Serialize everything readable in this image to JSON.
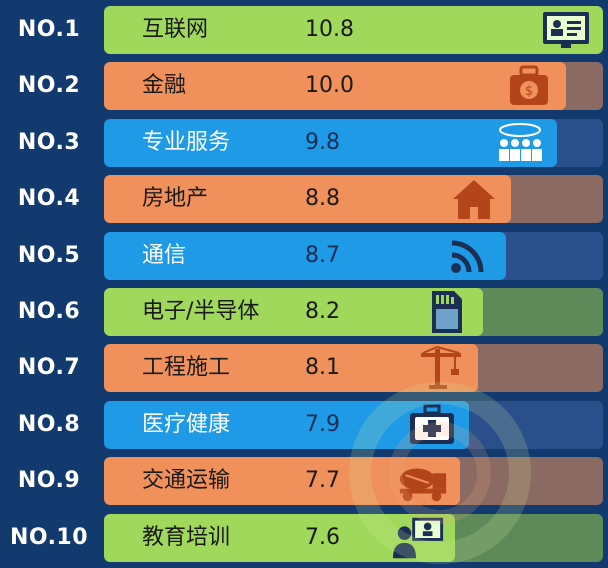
{
  "chart_data": {
    "type": "bar",
    "orientation": "horizontal",
    "categories": [
      "互联网",
      "金融",
      "专业服务",
      "房地产",
      "通信",
      "电子/半导体",
      "工程施工",
      "医疗健康",
      "交通运输",
      "教育培训"
    ],
    "ranks": [
      "NO.1",
      "NO.2",
      "NO.3",
      "NO.4",
      "NO.5",
      "NO.6",
      "NO.7",
      "NO.8",
      "NO.9",
      "NO.10"
    ],
    "values": [
      10.8,
      10.0,
      9.8,
      8.8,
      8.7,
      8.2,
      8.1,
      7.9,
      7.7,
      7.6
    ],
    "values_text": [
      "10.8",
      "10.0",
      "9.8",
      "8.8",
      "8.7",
      "8.2",
      "8.1",
      "7.9",
      "7.7",
      "7.6"
    ],
    "row_colors": [
      "#9fd85a",
      "#f0905a",
      "#1f9ae6",
      "#f0905a",
      "#1f9ae6",
      "#9fd85a",
      "#f0905a",
      "#1f9ae6",
      "#f0905a",
      "#9fd85a"
    ],
    "icons": [
      "monitor-profile-icon",
      "money-bag-icon",
      "team-meeting-icon",
      "house-icon",
      "signal-icon",
      "memory-card-icon",
      "tower-crane-icon",
      "medical-kit-icon",
      "cement-truck-icon",
      "teacher-board-icon"
    ],
    "xlim": [
      0,
      10.8
    ],
    "grid": false,
    "legend": "none"
  },
  "colors": {
    "background": "#123a6e",
    "track": "#808080",
    "green": "#9fd85a",
    "orange": "#f0905a",
    "blue": "#1f9ae6",
    "icon_dark": "#1b2f55"
  }
}
